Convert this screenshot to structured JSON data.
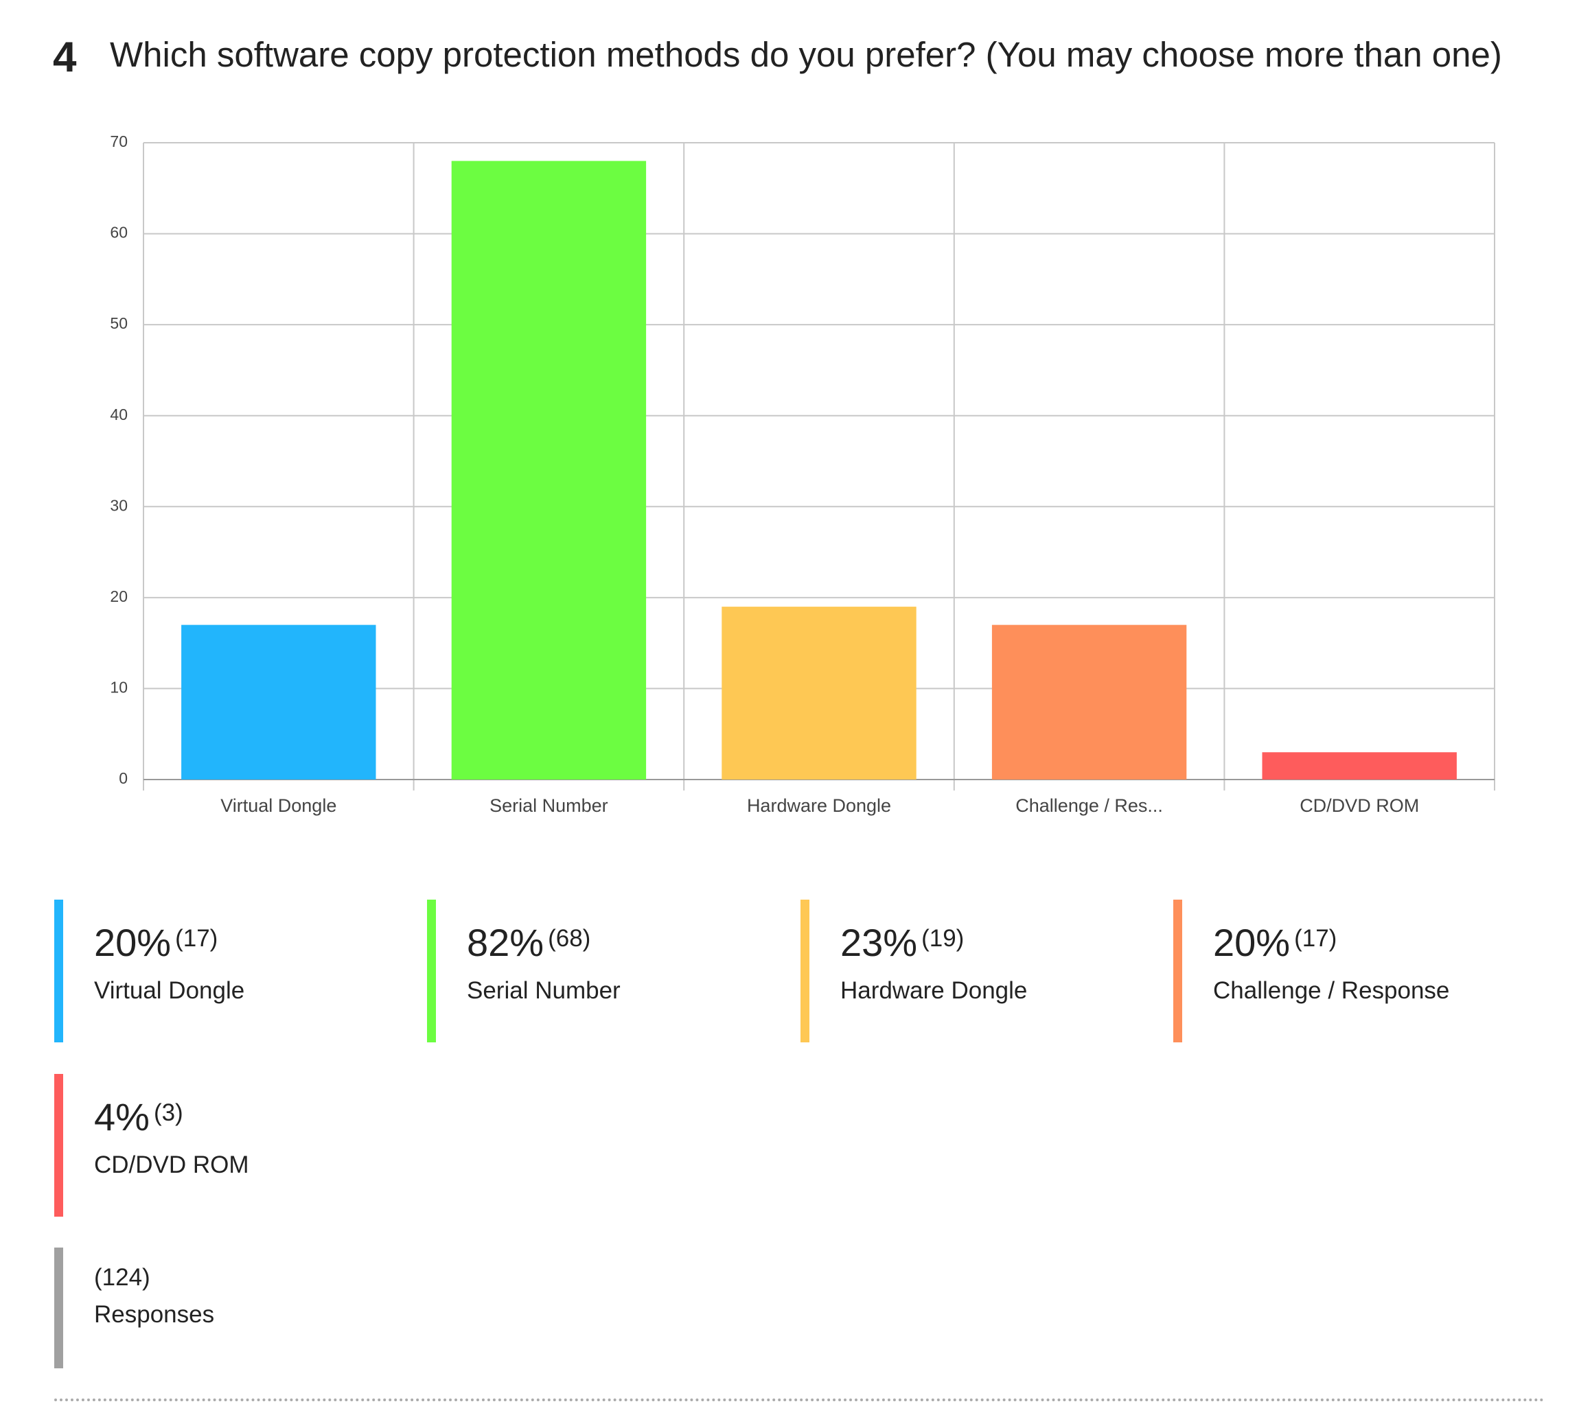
{
  "question_number": "4",
  "chart_data": {
    "type": "bar",
    "title": "Which software copy protection methods do you prefer? (You may choose more than one)",
    "categories": [
      "Virtual Dongle",
      "Serial Number",
      "Hardware Dongle",
      "Challenge / Res...",
      "CD/DVD ROM"
    ],
    "values": [
      17,
      68,
      19,
      17,
      3
    ],
    "colors": [
      "#22b5fc",
      "#6cfd41",
      "#fec854",
      "#fe8f5a",
      "#fe5c5c"
    ],
    "ylim": [
      0,
      70
    ],
    "yticks": [
      0,
      10,
      20,
      30,
      40,
      50,
      60,
      70
    ],
    "grid": true
  },
  "legend": {
    "items": [
      {
        "percent": "20%",
        "count": "(17)",
        "name": "Virtual Dongle"
      },
      {
        "percent": "82%",
        "count": "(68)",
        "name": "Serial Number"
      },
      {
        "percent": "23%",
        "count": "(19)",
        "name": "Hardware Dongle"
      },
      {
        "percent": "20%",
        "count": "(17)",
        "name": "Challenge / Response"
      },
      {
        "percent": "4%",
        "count": "(3)",
        "name": "CD/DVD ROM"
      }
    ],
    "total": {
      "count": "(124)",
      "label": "Responses",
      "color": "#a0a0a0"
    }
  }
}
